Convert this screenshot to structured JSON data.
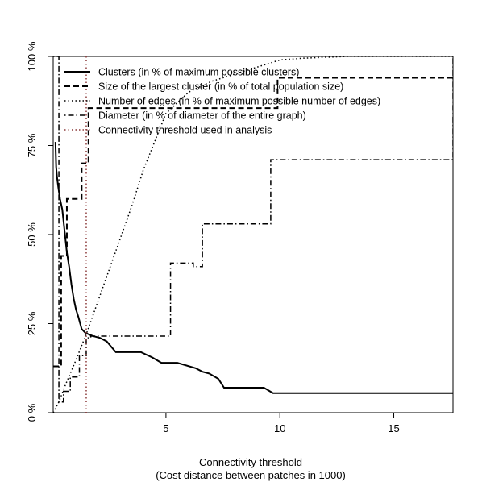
{
  "chart_data": {
    "type": "line",
    "title": "",
    "xlabel": "Connectivity threshold",
    "xlabel_sub": "(Cost distance between patches in 1000)",
    "ylabel": "",
    "xlim": [
      0.05,
      17.6
    ],
    "ylim": [
      0,
      100
    ],
    "x_ticks": [
      5,
      10,
      15
    ],
    "x_tick_labels": [
      "5",
      "10",
      "15"
    ],
    "y_ticks": [
      0,
      25,
      50,
      75,
      100
    ],
    "y_tick_labels": [
      "0 %",
      "25 %",
      "50 %",
      "75 %",
      "100 %"
    ],
    "legend_position": "top-left",
    "threshold": 1.5,
    "series": [
      {
        "name": "Clusters (in % of maximum possible clusters)",
        "style": "solid",
        "color": "#000000",
        "x": [
          0.15,
          0.18,
          0.22,
          0.28,
          0.35,
          0.45,
          0.55,
          0.65,
          0.75,
          0.85,
          0.95,
          1.05,
          1.15,
          1.3,
          1.45,
          1.6,
          1.8,
          2.1,
          2.4,
          2.8,
          3.3,
          3.9,
          4.4,
          4.8,
          5.5,
          6.3,
          6.6,
          6.9,
          7.3,
          7.55,
          8.2,
          9.3,
          9.7,
          10.0,
          12.0,
          17.6
        ],
        "y": [
          76,
          69,
          66,
          63,
          60,
          57,
          51,
          45,
          41,
          36,
          32,
          29,
          27,
          23.5,
          22.5,
          22,
          21.5,
          21,
          20,
          17,
          17,
          17,
          15.5,
          14,
          14,
          12.5,
          11.5,
          11,
          9.5,
          7,
          7,
          7,
          5.5,
          5.5,
          5.5,
          5.5
        ]
      },
      {
        "name": "Size of the largest cluster (in % of total population size)",
        "style": "dashed",
        "color": "#000000",
        "x": [
          0.05,
          0.2,
          0.4,
          0.5,
          0.65,
          0.9,
          1.3,
          1.6,
          2.4,
          4.4,
          6.1,
          7.4,
          9.6,
          9.9,
          17.6
        ],
        "y": [
          13,
          13,
          44,
          44,
          60,
          60,
          70,
          85.5,
          85.5,
          85.5,
          85.5,
          85.5,
          85.5,
          94,
          94
        ],
        "steps": true
      },
      {
        "name": "Number of edges (in % of maximum possible number of edges)",
        "style": "dotted",
        "color": "#000000",
        "x": [
          0.05,
          0.3,
          0.6,
          1.0,
          1.5,
          2.0,
          2.5,
          3.0,
          3.5,
          4.0,
          4.5,
          5.0,
          6.0,
          7.0,
          8.0,
          9.0,
          10.0,
          11.0,
          13.0,
          17.6
        ],
        "y": [
          0,
          3,
          8,
          14,
          22,
          31,
          40,
          49,
          58,
          68,
          76,
          84,
          90,
          93,
          95,
          97,
          99,
          99.5,
          100,
          100
        ]
      },
      {
        "name": "Diameter (in % of diameter of the entire graph)",
        "style": "dotdash",
        "color": "#000000",
        "x": [
          0.05,
          0.3,
          0.5,
          0.8,
          1.2,
          1.5,
          1.7,
          2.0,
          2.5,
          4.4,
          5.2,
          6.2,
          6.6,
          7.4,
          9.6,
          17.6
        ],
        "y": [
          100,
          3,
          6,
          10,
          16,
          21,
          21.5,
          21.5,
          21.5,
          21.5,
          42,
          41,
          53,
          53,
          71,
          100
        ],
        "steps": true
      },
      {
        "name": "Connectivity threshold used in analysis",
        "style": "dotted",
        "color": "#8b3a3a",
        "vertical_at": 1.5
      }
    ]
  }
}
